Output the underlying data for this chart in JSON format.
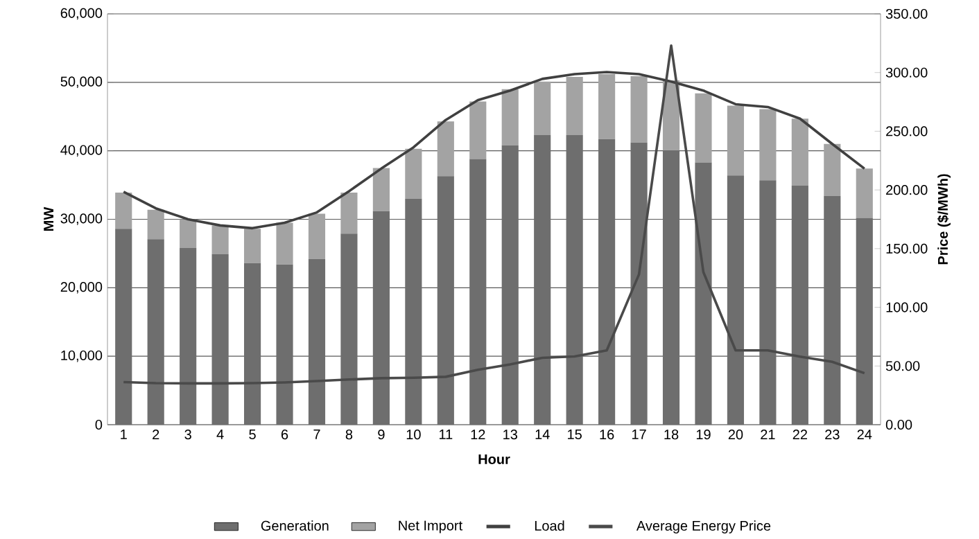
{
  "chart_data": {
    "type": "bar",
    "stacked": true,
    "xlabel": "Hour",
    "ylabel": "MW",
    "y2label": "Price ($/MWh)",
    "categories": [
      "1",
      "2",
      "3",
      "4",
      "5",
      "6",
      "7",
      "8",
      "9",
      "10",
      "11",
      "12",
      "13",
      "14",
      "15",
      "16",
      "17",
      "18",
      "19",
      "20",
      "21",
      "22",
      "23",
      "24"
    ],
    "series": [
      {
        "name": "Generation",
        "color": "#6e6e6e",
        "values": [
          28600,
          27100,
          25800,
          24900,
          23600,
          23400,
          24200,
          27900,
          31200,
          33000,
          36300,
          38800,
          40800,
          42300,
          42300,
          41700,
          41200,
          40100,
          38300,
          36400,
          35700,
          34900,
          33400,
          30200
        ]
      },
      {
        "name": "Net Import",
        "color": "#a3a3a3",
        "values": [
          5300,
          4300,
          4200,
          4200,
          5000,
          6100,
          6600,
          6000,
          6300,
          7300,
          8000,
          8400,
          8200,
          7800,
          8500,
          9500,
          9700,
          10200,
          10100,
          10200,
          10400,
          9800,
          7600,
          7200
        ]
      },
      {
        "name": "Load",
        "type": "line",
        "color": "#404040",
        "values": [
          34000,
          31600,
          30000,
          29100,
          28700,
          29500,
          31000,
          34100,
          37400,
          40500,
          44500,
          47400,
          48800,
          50500,
          51200,
          51500,
          51200,
          50100,
          48800,
          46800,
          46400,
          44700,
          41000,
          37400
        ]
      },
      {
        "name": "Average Energy Price",
        "type": "line",
        "axis": "y2",
        "color": "#4a4a4a",
        "values": [
          36.3,
          35.4,
          35.2,
          35.2,
          35.4,
          36.0,
          37.2,
          38.5,
          39.6,
          40.0,
          40.8,
          46.8,
          51.3,
          57.0,
          58.1,
          63.3,
          128,
          323,
          130,
          63.3,
          63.3,
          58.0,
          53.6,
          43.9
        ]
      }
    ],
    "ylim": [
      0,
      60000
    ],
    "yticks": [
      0,
      {
        "value": 10000,
        "label": "10,000"
      },
      {
        "value": 20000,
        "label": "20,000"
      },
      {
        "value": 30000,
        "label": "30,000"
      },
      {
        "value": 40000,
        "label": "40,000"
      },
      {
        "value": 50000,
        "label": "50,000"
      },
      {
        "value": 60000,
        "label": "60,000"
      }
    ],
    "y2lim": [
      0,
      350
    ],
    "y2ticks": [
      {
        "value": 0,
        "label": "0.00"
      },
      {
        "value": 50,
        "label": "50.00"
      },
      {
        "value": 100,
        "label": "100.00"
      },
      {
        "value": 150,
        "label": "150.00"
      },
      {
        "value": 200,
        "label": "200.00"
      },
      {
        "value": 250,
        "label": "250.00"
      },
      {
        "value": 300,
        "label": "300.00"
      },
      {
        "value": 350,
        "label": "350.00"
      }
    ],
    "grid": "y",
    "legend": "bottom",
    "marker": "none",
    "line_style": "solid"
  }
}
